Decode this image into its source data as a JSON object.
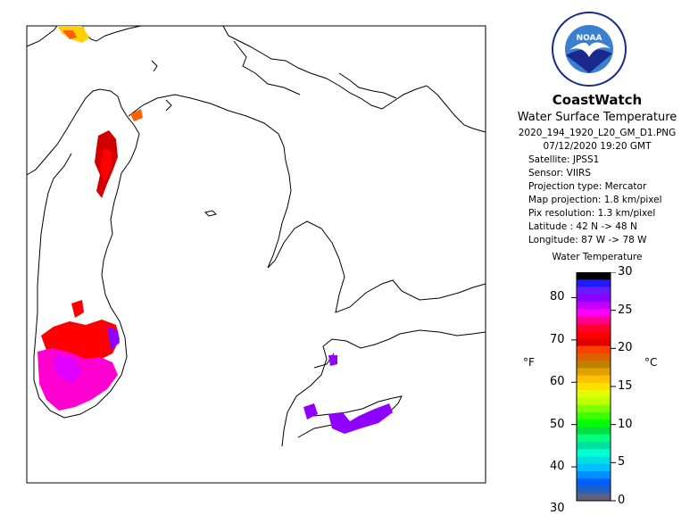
{
  "header": {
    "brand": "CoastWatch",
    "product": "Water Surface Temperature",
    "filename": "2020_194_1920_L20_GM_D1.PNG",
    "datetime": "07/12/2020   19:20 GMT",
    "satellite": "Satellite: JPSS1",
    "sensor": "Sensor: VIIRS",
    "projection_type": "Projection type:  Mercator",
    "map_projection": "Map projection: 1.8 km/pixel",
    "pix_resolution": "Pix resolution: 1.3 km/pixel",
    "latitude": "Latitude : 42 N -> 48 N",
    "longitude": "Longitude: 87 W -> 78 W"
  },
  "logo": {
    "text": "NOAA",
    "colors": {
      "outer": "#ffffff",
      "ring": "#1a2a8c",
      "sky": "#3a7fd0",
      "bird": "#ffffff"
    }
  },
  "scale": {
    "title": "Water Temperature",
    "unit_f": "°F",
    "unit_c": "°C",
    "f_ticks": [
      "80",
      "70",
      "60",
      "50",
      "40",
      "30"
    ],
    "c_ticks": [
      "30",
      "25",
      "20",
      "15",
      "10",
      "5",
      "0"
    ],
    "f_values": [
      80,
      70,
      60,
      50,
      40,
      30
    ],
    "c_values": [
      30,
      25,
      20,
      15,
      10,
      5,
      0
    ],
    "colors_top_to_bottom": [
      "#000000",
      "#1c1cff",
      "#6a1cff",
      "#8a00ff",
      "#c000ff",
      "#ff00ff",
      "#ff0090",
      "#ff0030",
      "#ff0000",
      "#e00000",
      "#ff4000",
      "#e06000",
      "#c08000",
      "#e0a000",
      "#ffc000",
      "#ffe000",
      "#e0ff00",
      "#c0ff00",
      "#80ff00",
      "#40ff00",
      "#00ff00",
      "#00e040",
      "#00ff80",
      "#00e0a0",
      "#00ffd0",
      "#00e0e0",
      "#00c0ff",
      "#0090ff",
      "#0060ff",
      "#2060c0",
      "#606080"
    ]
  },
  "map": {
    "land_color": "#ffffff",
    "outline_color": "#000000",
    "temperature_colors": {
      "pink": "#ff00d0",
      "magenta": "#e000ff",
      "red": "#ff0000",
      "darkred": "#d00000",
      "purple": "#9000ff",
      "orange": "#ff6000",
      "yellow": "#ffd000"
    }
  }
}
